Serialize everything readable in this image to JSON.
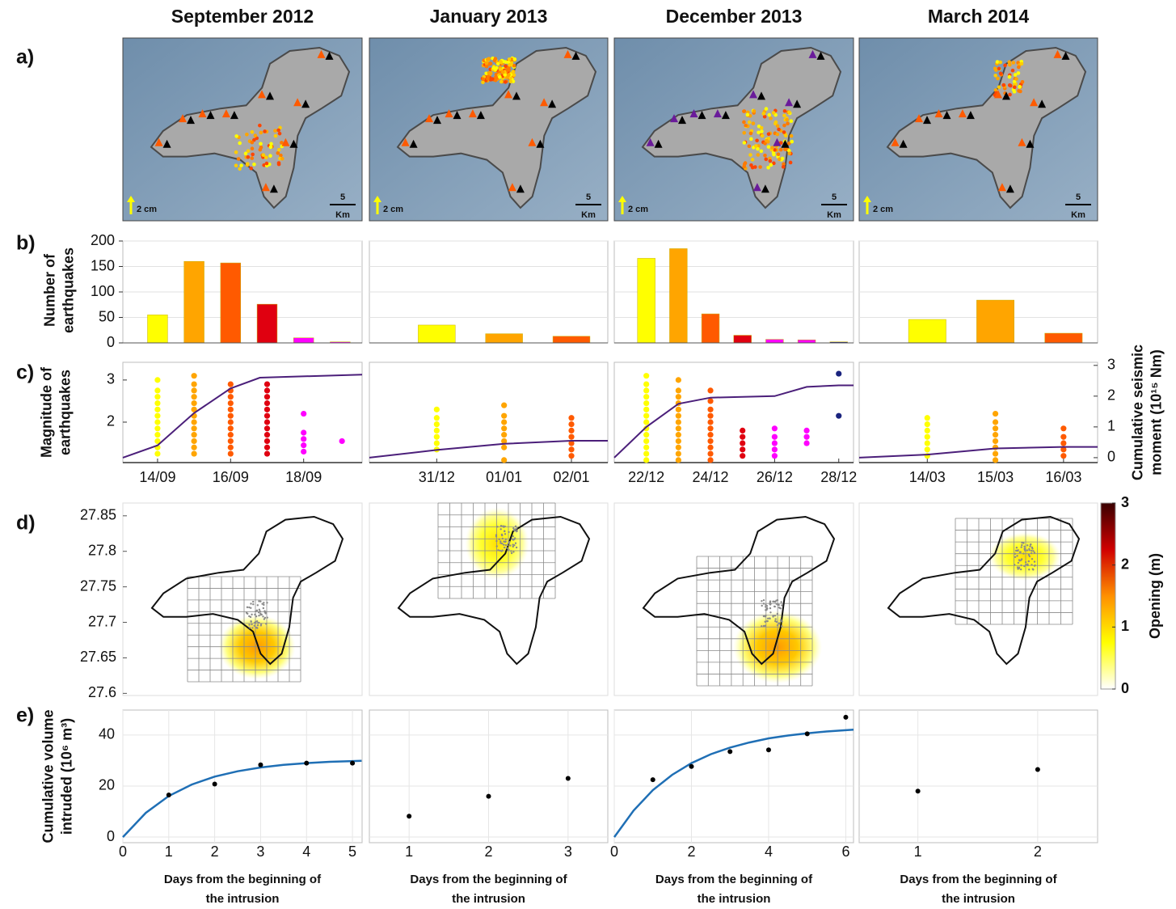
{
  "column_titles": [
    "September 2012",
    "January 2013",
    "December 2013",
    "March 2014"
  ],
  "row_labels": [
    "a)",
    "b)",
    "c)",
    "d)",
    "e)"
  ],
  "map_labels": {
    "arrow": "2 cm",
    "scale": "5",
    "scale_unit": "Km"
  },
  "chart_data": [
    {
      "type": "bar",
      "ylabel": [
        "Number of",
        "earthquakes"
      ],
      "x": [
        14,
        15,
        16,
        17,
        18,
        19
      ],
      "values": [
        55,
        160,
        157,
        76,
        10,
        2
      ],
      "colors": [
        "#ffff00",
        "#ffa500",
        "#ff5a00",
        "#e00010",
        "#ff00ff",
        "#ff00ff"
      ],
      "xlim": [
        13.05,
        19.6
      ],
      "ylim": [
        0,
        200
      ],
      "yticks": [
        0,
        50,
        100,
        150,
        200
      ],
      "grid": true,
      "show_tick_labels": true
    },
    {
      "type": "bar",
      "x": [
        31,
        32,
        33
      ],
      "values": [
        35,
        18,
        13
      ],
      "colors": [
        "#ffff00",
        "#ffa500",
        "#ff5a00"
      ],
      "xlim": [
        30,
        33.54
      ],
      "ylim": [
        0,
        200
      ],
      "yticks": [
        0,
        50,
        100,
        150,
        200
      ],
      "grid": true,
      "show_tick_labels": false
    },
    {
      "type": "bar",
      "x": [
        22,
        23,
        24,
        25,
        26,
        27,
        28
      ],
      "values": [
        166,
        185,
        57,
        15,
        7,
        6,
        2
      ],
      "colors": [
        "#ffff00",
        "#ffa500",
        "#ff5a00",
        "#e00010",
        "#ff00ff",
        "#ff00ff",
        "#1a237e"
      ],
      "xlim": [
        21,
        28.46
      ],
      "ylim": [
        0,
        200
      ],
      "yticks": [
        0,
        50,
        100,
        150,
        200
      ],
      "grid": true,
      "show_tick_labels": false
    },
    {
      "type": "bar",
      "x": [
        14,
        15,
        16
      ],
      "values": [
        46,
        84,
        19
      ],
      "colors": [
        "#ffff00",
        "#ffa500",
        "#ff5a00"
      ],
      "xlim": [
        13,
        16.5
      ],
      "ylim": [
        0,
        200
      ],
      "yticks": [
        0,
        50,
        100,
        150,
        200
      ],
      "grid": true,
      "show_tick_labels": false
    },
    {
      "type": "scatter",
      "ylabel": [
        "Magnitude of",
        "earthquakes"
      ],
      "xlim": [
        13.05,
        19.6
      ],
      "ylim": [
        1.04,
        3.42
      ],
      "y2lim": [
        -0.16,
        3.1
      ],
      "yticks": [
        2,
        3
      ],
      "xticks": [
        {
          "value": 14,
          "label": "14/09"
        },
        {
          "value": 16,
          "label": "16/09"
        },
        {
          "value": 18,
          "label": "18/09"
        }
      ],
      "points": [
        {
          "x": 14,
          "color": "#ffff00",
          "values": [
            1.25,
            1.4,
            1.55,
            1.7,
            1.85,
            2.0,
            2.15,
            2.3,
            2.45,
            2.6,
            2.75,
            3.0
          ]
        },
        {
          "x": 15,
          "color": "#ffa500",
          "values": [
            1.25,
            1.4,
            1.55,
            1.7,
            1.85,
            2.0,
            2.15,
            2.3,
            2.45,
            2.6,
            2.75,
            2.9,
            3.1
          ]
        },
        {
          "x": 16,
          "color": "#ff5a00",
          "values": [
            1.25,
            1.4,
            1.55,
            1.7,
            1.85,
            2.0,
            2.15,
            2.3,
            2.45,
            2.6,
            2.75,
            2.9
          ]
        },
        {
          "x": 17,
          "color": "#e00010",
          "values": [
            1.25,
            1.4,
            1.55,
            1.7,
            1.85,
            2.0,
            2.15,
            2.3,
            2.45,
            2.6,
            2.75,
            2.9
          ]
        },
        {
          "x": 18,
          "color": "#ff00ff",
          "values": [
            1.3,
            1.45,
            1.6,
            1.75,
            2.2
          ]
        },
        {
          "x": 19.05,
          "color": "#ff00ff",
          "values": [
            1.55
          ]
        }
      ],
      "moment": {
        "axis": "y2",
        "color": "#4b1f7a",
        "x": [
          13.05,
          14,
          15,
          16,
          16.8,
          19.6
        ],
        "values": [
          0,
          0.4,
          1.45,
          2.25,
          2.6,
          2.7
        ]
      }
    },
    {
      "type": "scatter",
      "xlim": [
        30,
        33.54
      ],
      "ylim": [
        1.04,
        3.42
      ],
      "y2lim": [
        -0.16,
        3.1
      ],
      "xticks": [
        {
          "value": 31,
          "label": "31/12"
        },
        {
          "value": 32,
          "label": "01/01"
        },
        {
          "value": 33,
          "label": "02/01"
        }
      ],
      "points": [
        {
          "x": 31,
          "color": "#ffff00",
          "values": [
            1.35,
            1.5,
            1.65,
            1.8,
            1.95,
            2.1,
            2.3
          ]
        },
        {
          "x": 32,
          "color": "#ffa500",
          "values": [
            1.1,
            1.4,
            1.55,
            1.7,
            1.85,
            2.0,
            2.15,
            2.4
          ]
        },
        {
          "x": 33,
          "color": "#ff5a00",
          "values": [
            1.2,
            1.35,
            1.5,
            1.65,
            1.8,
            1.95,
            2.1
          ]
        }
      ],
      "moment": {
        "axis": "y2",
        "color": "#4b1f7a",
        "x": [
          30,
          31,
          32,
          33,
          33.54
        ],
        "values": [
          0,
          0.25,
          0.45,
          0.55,
          0.55
        ]
      }
    },
    {
      "type": "scatter",
      "xlim": [
        21,
        28.46
      ],
      "ylim": [
        1.04,
        3.42
      ],
      "y2lim": [
        -0.16,
        3.1
      ],
      "xticks": [
        {
          "value": 22,
          "label": "22/12"
        },
        {
          "value": 24,
          "label": "24/12"
        },
        {
          "value": 26,
          "label": "26/12"
        },
        {
          "value": 28,
          "label": "28/12"
        }
      ],
      "points": [
        {
          "x": 22,
          "color": "#ffff00",
          "values": [
            1.1,
            1.25,
            1.4,
            1.55,
            1.7,
            1.85,
            2.0,
            2.15,
            2.3,
            2.45,
            2.6,
            2.75,
            2.9,
            3.1
          ]
        },
        {
          "x": 23,
          "color": "#ffa500",
          "values": [
            1.1,
            1.25,
            1.4,
            1.55,
            1.7,
            1.85,
            2.0,
            2.15,
            2.3,
            2.45,
            2.6,
            2.75,
            3.0
          ]
        },
        {
          "x": 24,
          "color": "#ff5a00",
          "values": [
            1.1,
            1.25,
            1.4,
            1.55,
            1.7,
            1.85,
            2.0,
            2.15,
            2.3,
            2.5,
            2.75
          ]
        },
        {
          "x": 25,
          "color": "#e00010",
          "values": [
            1.2,
            1.35,
            1.5,
            1.65,
            1.8
          ]
        },
        {
          "x": 26,
          "color": "#ff00ff",
          "values": [
            1.2,
            1.35,
            1.5,
            1.65,
            1.85
          ]
        },
        {
          "x": 27,
          "color": "#ff00ff",
          "values": [
            1.5,
            1.65,
            1.8
          ]
        },
        {
          "x": 28,
          "color": "#1a237e",
          "values": [
            2.15,
            3.15
          ]
        }
      ],
      "moment": {
        "axis": "y2",
        "color": "#4b1f7a",
        "x": [
          21,
          22,
          23,
          24,
          26,
          27,
          28,
          28.46
        ],
        "values": [
          0,
          1.0,
          1.75,
          1.95,
          2.0,
          2.3,
          2.35,
          2.35
        ]
      }
    },
    {
      "type": "scatter",
      "y2label": [
        "Cumulative seismic",
        "moment (10¹⁵ Nm)"
      ],
      "xlim": [
        13,
        16.5
      ],
      "ylim": [
        1.04,
        3.42
      ],
      "y2lim": [
        -0.16,
        3.1
      ],
      "y2ticks": [
        0,
        1,
        2,
        3
      ],
      "xticks": [
        {
          "value": 14,
          "label": "14/03"
        },
        {
          "value": 15,
          "label": "15/03"
        },
        {
          "value": 16,
          "label": "16/03"
        }
      ],
      "points": [
        {
          "x": 14,
          "color": "#ffff00",
          "values": [
            1.2,
            1.35,
            1.5,
            1.65,
            1.8,
            1.95,
            2.1
          ]
        },
        {
          "x": 15,
          "color": "#ffa500",
          "values": [
            1.1,
            1.25,
            1.4,
            1.55,
            1.7,
            1.85,
            2.0,
            2.2
          ]
        },
        {
          "x": 16,
          "color": "#ff5a00",
          "values": [
            1.2,
            1.35,
            1.5,
            1.65,
            1.85
          ]
        }
      ],
      "moment": {
        "axis": "y2",
        "color": "#4b1f7a",
        "x": [
          13,
          14,
          15,
          16,
          16.5
        ],
        "values": [
          0,
          0.1,
          0.3,
          0.35,
          0.35
        ]
      }
    },
    {
      "type": "scatter",
      "ylabel": [
        "Cumulative volume",
        "intruded (10⁶ m³)"
      ],
      "xlabel": [
        "Days from the beginning of",
        "the intrusion"
      ],
      "color": "#000000",
      "x": [
        1,
        2,
        3,
        4,
        5
      ],
      "values": [
        16.5,
        20.8,
        28.3,
        29,
        29
      ],
      "fit": {
        "color": "#1f6fb5",
        "x": [
          0,
          0.5,
          1,
          1.5,
          2,
          2.5,
          3,
          3.5,
          4,
          4.5,
          5,
          5.2
        ],
        "values": [
          0,
          9.5,
          16.1,
          20.6,
          23.7,
          25.8,
          27.3,
          28.3,
          29.0,
          29.5,
          29.8,
          29.9
        ]
      },
      "xlim": [
        0,
        5.21
      ],
      "ylim": [
        -2.2,
        49.8
      ],
      "xticks": [
        0,
        1,
        2,
        3,
        4,
        5
      ],
      "yticks": [
        0,
        20,
        40
      ],
      "grid": true,
      "show_tick_labels": true
    },
    {
      "type": "scatter",
      "xlabel": [
        "Days from the beginning of",
        "the intrusion"
      ],
      "color": "#000000",
      "x": [
        1,
        2,
        3
      ],
      "values": [
        8.2,
        16,
        23
      ],
      "xlim": [
        0.5,
        3.5
      ],
      "ylim": [
        -2.2,
        49.8
      ],
      "xticks": [
        1,
        2,
        3
      ],
      "yticks": [
        0,
        20,
        40
      ],
      "grid": true,
      "show_tick_labels": false
    },
    {
      "type": "scatter",
      "xlabel": [
        "Days from the beginning of",
        "the intrusion"
      ],
      "color": "#000000",
      "x": [
        1,
        2,
        3,
        4,
        5,
        6
      ],
      "values": [
        22.5,
        27.7,
        33.5,
        34.2,
        40.5,
        47
      ],
      "fit": {
        "color": "#1f6fb5",
        "x": [
          0,
          0.5,
          1,
          1.5,
          2,
          2.5,
          3,
          3.5,
          4,
          4.5,
          5,
          5.5,
          6,
          6.2
        ],
        "values": [
          0,
          10.4,
          18.4,
          24.4,
          29.0,
          32.5,
          35.1,
          37.1,
          38.7,
          39.8,
          40.7,
          41.4,
          41.9,
          42.1
        ]
      },
      "xlim": [
        0,
        6.2
      ],
      "ylim": [
        -2.2,
        49.8
      ],
      "xticks": [
        0,
        2,
        4,
        6
      ],
      "yticks": [
        0,
        20,
        40
      ],
      "grid": true,
      "show_tick_labels": false
    },
    {
      "type": "scatter",
      "xlabel": [
        "Days from the beginning of",
        "the intrusion"
      ],
      "color": "#000000",
      "x": [
        1,
        2
      ],
      "values": [
        18,
        26.5
      ],
      "xlim": [
        0.51,
        2.5
      ],
      "ylim": [
        -2.2,
        49.8
      ],
      "xticks": [
        1,
        2
      ],
      "yticks": [
        0,
        20,
        40
      ],
      "grid": true,
      "show_tick_labels": false
    },
    {
      "type": "map",
      "ylim": [
        27.597,
        27.868
      ],
      "yticks": [
        27.6,
        27.65,
        27.7,
        27.75,
        27.8,
        27.85
      ]
    },
    {
      "type": "colorbar",
      "label": "Opening (m)",
      "ylim": [
        0,
        3
      ],
      "yticks": [
        0,
        1,
        2,
        3
      ],
      "colors": [
        "#ffffff",
        "#ffff00",
        "#ff9000",
        "#d00000",
        "#3a0000"
      ]
    }
  ]
}
